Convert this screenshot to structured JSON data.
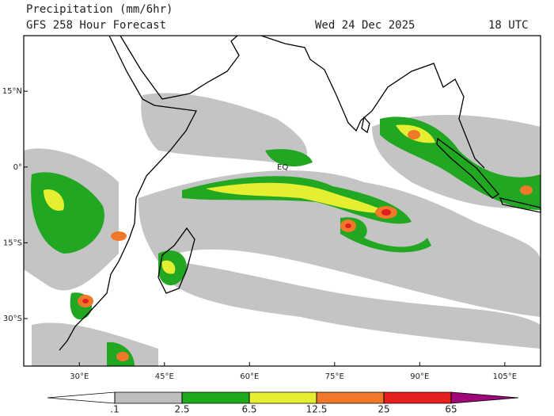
{
  "header": {
    "title": "Precipitation (mm/6hr)",
    "subtitle": "GFS 258 Hour Forecast",
    "date": "Wed 24 Dec 2025",
    "time": "18 UTC"
  },
  "map": {
    "xlim": [
      20.2,
      111.3
    ],
    "ylim": [
      -39.4,
      26
    ],
    "equator_label": "EQ",
    "xticks": [
      {
        "value": 30,
        "label": "30°E"
      },
      {
        "value": 45,
        "label": "45°E"
      },
      {
        "value": 60,
        "label": "60°E"
      },
      {
        "value": 75,
        "label": "75°E"
      },
      {
        "value": 90,
        "label": "90°E"
      },
      {
        "value": 105,
        "label": "105°E"
      }
    ],
    "yticks": [
      {
        "value": 15,
        "label": "15°N"
      },
      {
        "value": 0,
        "label": "0°"
      },
      {
        "value": -15,
        "label": "15°S"
      },
      {
        "value": -30,
        "label": "30°S"
      }
    ]
  },
  "colorbar": {
    "levels": [
      {
        "value": 0.1,
        "label": ".1"
      },
      2.5,
      6.5,
      12.5,
      25,
      65
    ],
    "colors": [
      "#ffffff",
      "#bebebe",
      "#1eaa1e",
      "#e6ee32",
      "#f07828",
      "#e61e1e",
      "#a0087a"
    ]
  }
}
